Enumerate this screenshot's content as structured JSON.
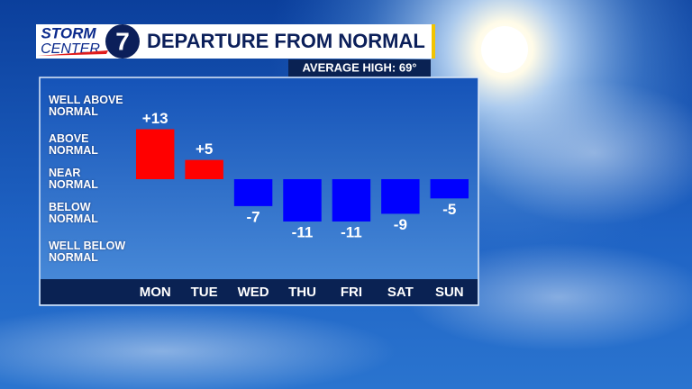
{
  "chart_data": {
    "type": "bar",
    "title": "DEPARTURE FROM NORMAL",
    "subtitle": "AVERAGE HIGH: 69°",
    "logo": {
      "top": "STORM",
      "bottom": "CENTER",
      "number": "7"
    },
    "categories": [
      "MON",
      "TUE",
      "WED",
      "THU",
      "FRI",
      "SAT",
      "SUN"
    ],
    "values": [
      13,
      5,
      -7,
      -11,
      -11,
      -9,
      -5
    ],
    "value_labels": [
      "+13",
      "+5",
      "-7",
      "-11",
      "-11",
      "-9",
      "-5"
    ],
    "positive_color": "#ff0000",
    "negative_color": "#0000ff",
    "ylim": [
      -26,
      26
    ],
    "yticks": [
      {
        "value": 19,
        "label": "WELL ABOVE\nNORMAL"
      },
      {
        "value": 9,
        "label": "ABOVE\nNORMAL"
      },
      {
        "value": 0,
        "label": "NEAR\nNORMAL"
      },
      {
        "value": -9,
        "label": "BELOW\nNORMAL"
      },
      {
        "value": -19,
        "label": "WELL BELOW\nNORMAL"
      }
    ]
  }
}
